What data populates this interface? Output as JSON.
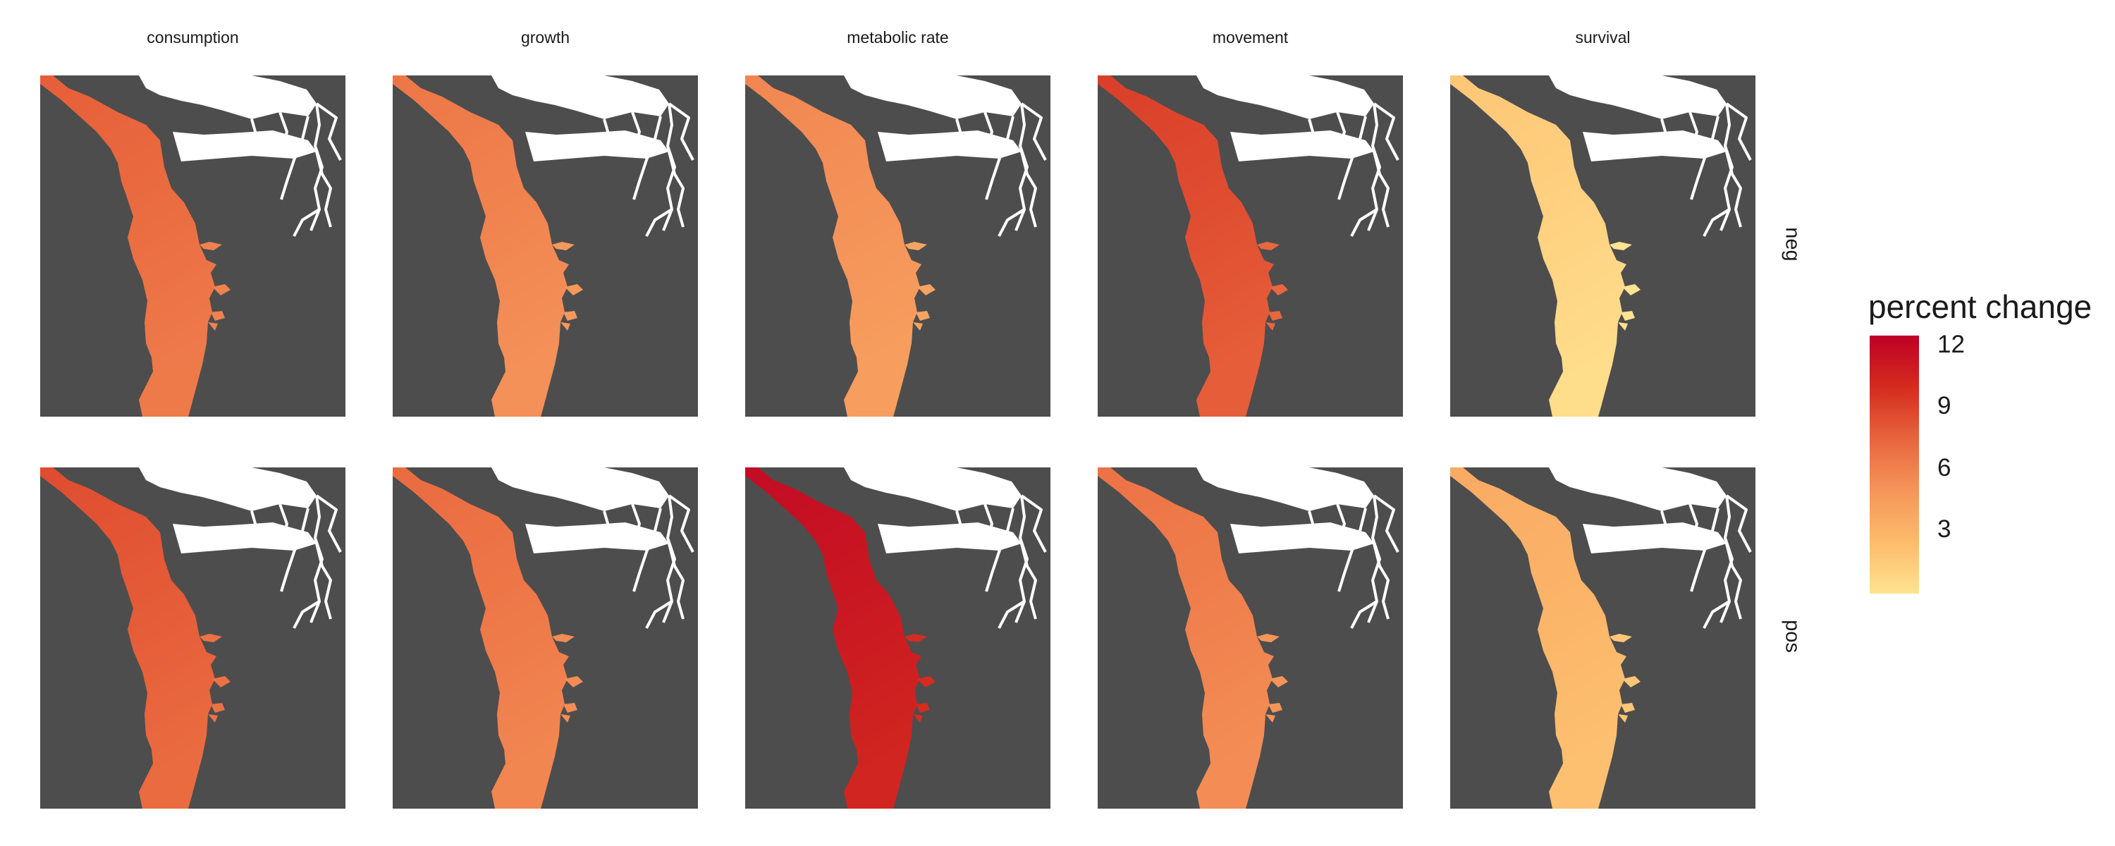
{
  "columns": [
    "consumption",
    "growth",
    "metabolic rate",
    "movement",
    "survival"
  ],
  "rows": [
    "neg",
    "pos"
  ],
  "legend": {
    "title": "percent change",
    "ticks": [
      "12",
      "9",
      "6",
      "3"
    ],
    "tick_values": [
      12,
      9,
      6,
      3
    ],
    "range": [
      0,
      12.5
    ],
    "colors": [
      "#fee391",
      "#fdbb6b",
      "#f5955a",
      "#e8653d",
      "#d42c1f",
      "#bd0026"
    ]
  },
  "panels": [
    {
      "row": "neg",
      "column": "consumption",
      "value": 7.2
    },
    {
      "row": "neg",
      "column": "growth",
      "value": 6.0
    },
    {
      "row": "neg",
      "column": "metabolic rate",
      "value": 5.2
    },
    {
      "row": "neg",
      "column": "movement",
      "value": 8.6
    },
    {
      "row": "neg",
      "column": "survival",
      "value": 1.2
    },
    {
      "row": "pos",
      "column": "consumption",
      "value": 8.0
    },
    {
      "row": "pos",
      "column": "growth",
      "value": 6.6
    },
    {
      "row": "pos",
      "column": "metabolic rate",
      "value": 11.2
    },
    {
      "row": "pos",
      "column": "movement",
      "value": 6.2
    },
    {
      "row": "pos",
      "column": "survival",
      "value": 3.0
    }
  ]
}
